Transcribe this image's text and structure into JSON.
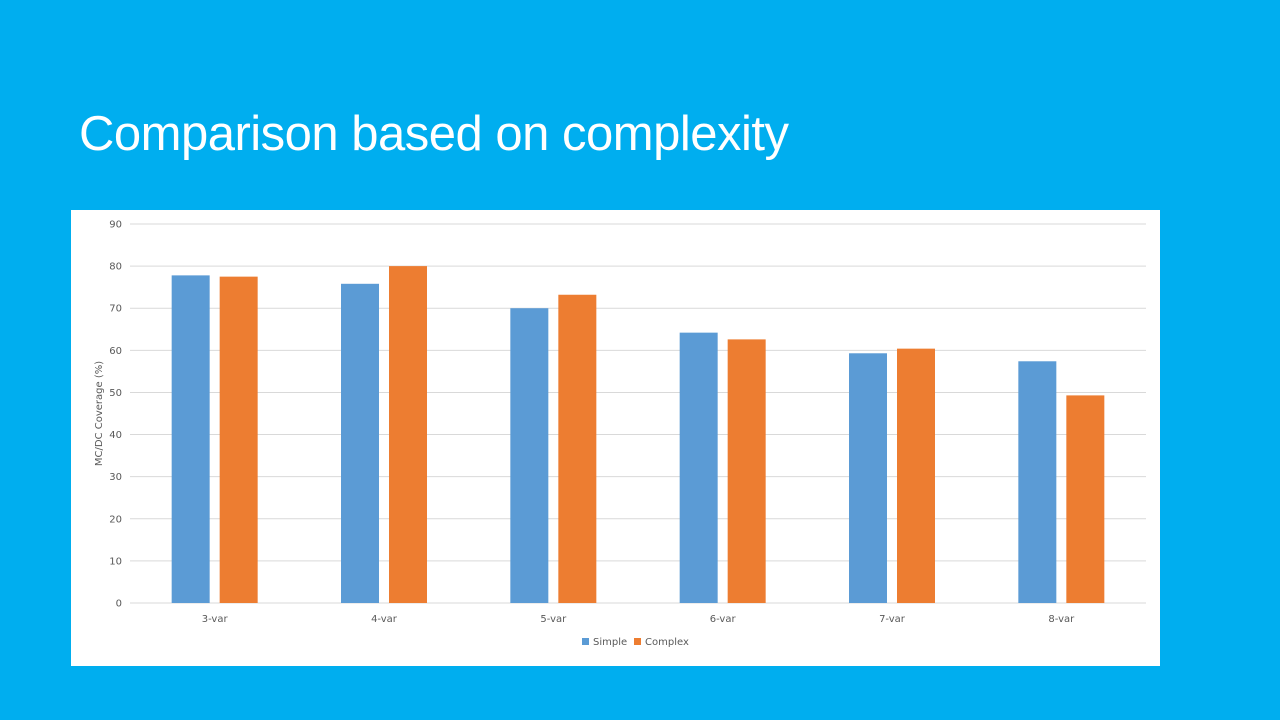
{
  "slide": {
    "title": "Comparison based on complexity"
  },
  "colors": {
    "background": "#00AEEF",
    "simple": "#5B9BD5",
    "complex": "#ED7D31",
    "grid": "#D9D9D9",
    "text": "#595959"
  },
  "chart_data": {
    "type": "bar",
    "title": "",
    "xlabel": "",
    "ylabel": "MC/DC Coverage (%)",
    "ylim": [
      0,
      90
    ],
    "yticks": [
      0,
      10,
      20,
      30,
      40,
      50,
      60,
      70,
      80,
      90
    ],
    "grid": true,
    "legend_position": "bottom",
    "categories": [
      "3-var",
      "4-var",
      "5-var",
      "6-var",
      "7-var",
      "8-var"
    ],
    "series": [
      {
        "name": "Simple",
        "color": "#5B9BD5",
        "values": [
          77.8,
          75.8,
          70.0,
          64.2,
          59.3,
          57.4
        ]
      },
      {
        "name": "Complex",
        "color": "#ED7D31",
        "values": [
          77.5,
          80.0,
          73.2,
          62.6,
          60.4,
          49.3
        ]
      }
    ]
  }
}
